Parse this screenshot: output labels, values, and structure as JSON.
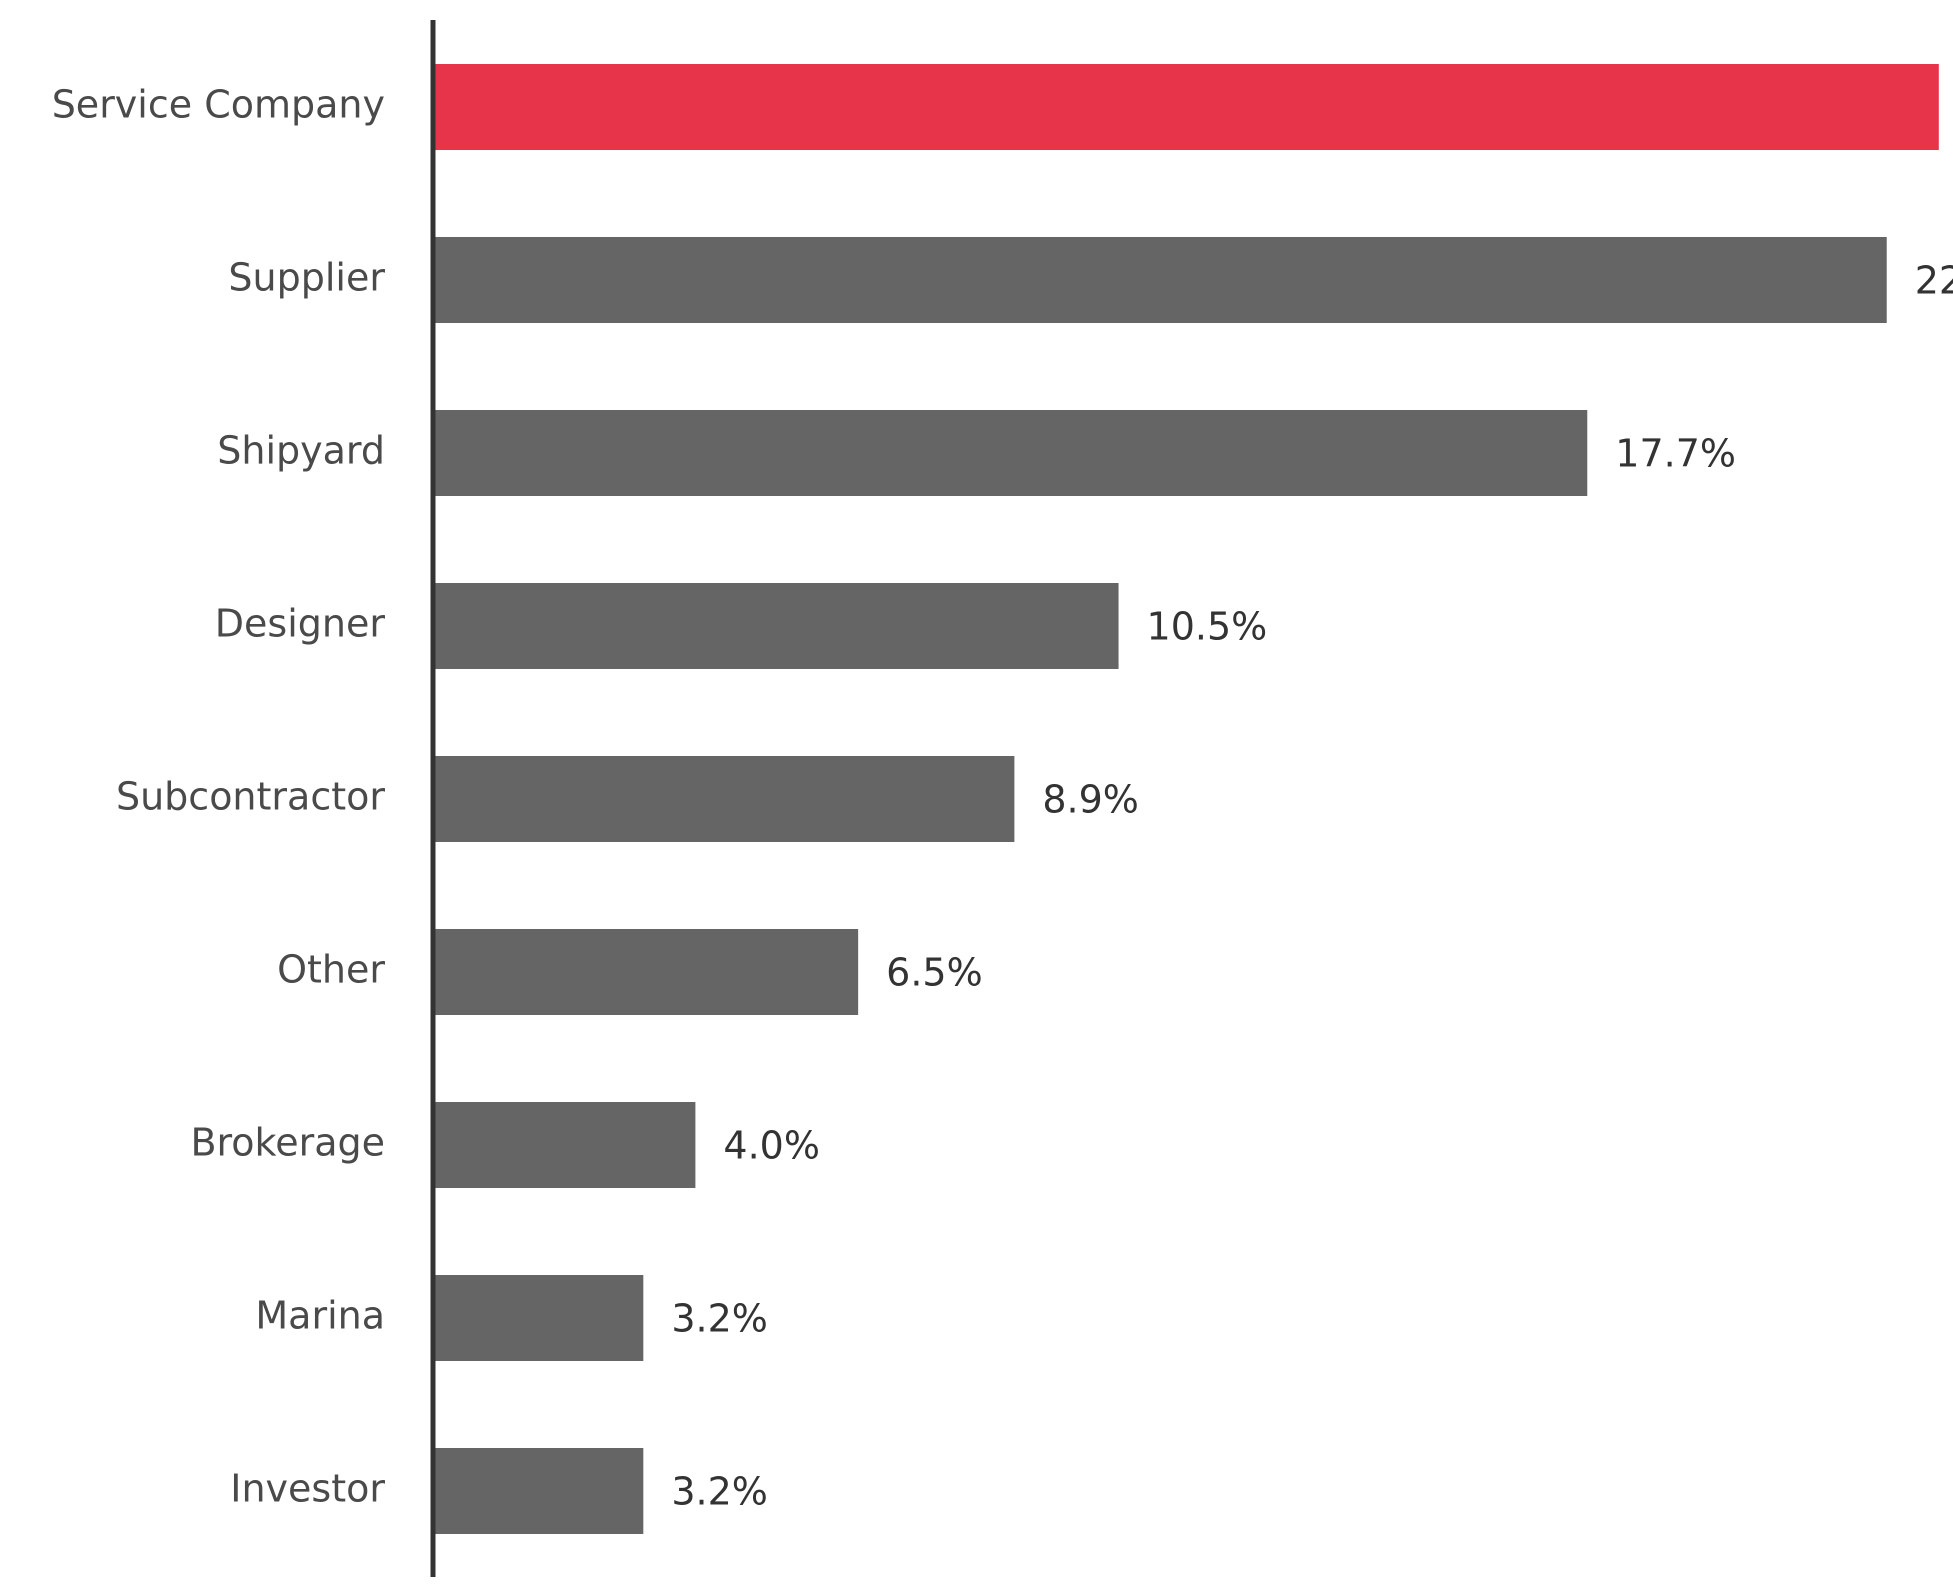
{
  "chart_data": {
    "type": "bar",
    "orientation": "horizontal",
    "categories": [
      "Service Company",
      "Supplier",
      "Shipyard",
      "Designer",
      "Subcontractor",
      "Other",
      "Brokerage",
      "Marina",
      "Investor"
    ],
    "values": [
      23.1,
      22.3,
      17.7,
      10.5,
      8.9,
      6.5,
      4.0,
      3.2,
      3.2
    ],
    "data_labels": [
      "",
      "22",
      "17.7%",
      "10.5%",
      "8.9%",
      "6.5%",
      "4.0%",
      "3.2%",
      "3.2%"
    ],
    "highlight_index": 0,
    "colors": {
      "highlight": "#e8344b",
      "bar": "#656565",
      "axis": "#333333"
    },
    "title": "",
    "xlabel": "",
    "ylabel": "",
    "xlim": [
      0,
      23.1
    ],
    "grid": false
  }
}
